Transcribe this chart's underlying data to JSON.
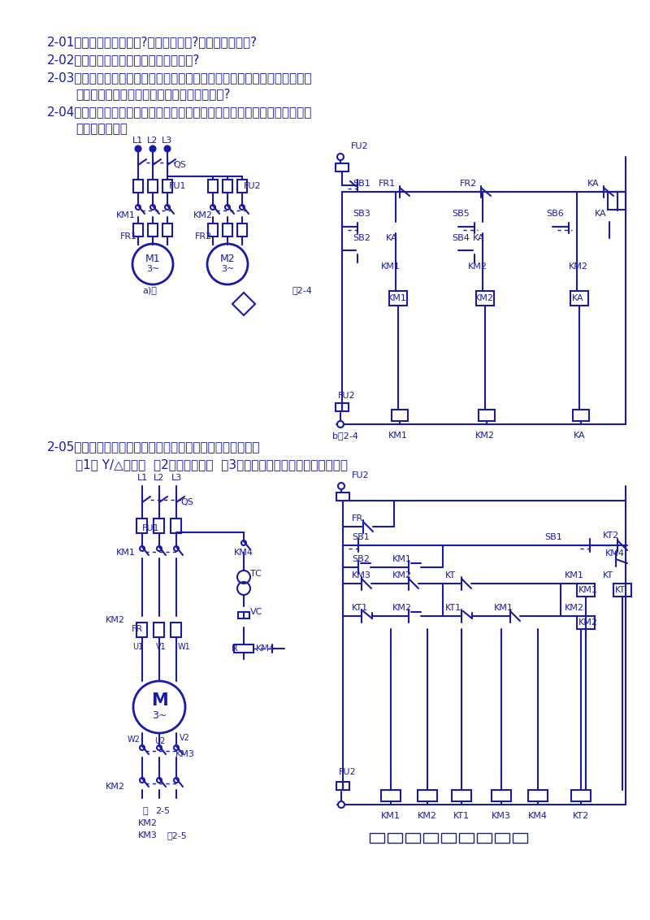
{
  "bg_color": "#ffffff",
  "diagram_color": "#1a1aaa",
  "text_color": "#1a1aaa",
  "fig_width": 8.0,
  "fig_height": 11.32,
  "q1": "2-01、自锁环节怎样组成?它起什么作用?并具有什么功能?",
  "q2": "2-02、什么是互锁环节，它起到什么作用?",
  "q3a": "2-03、在有自动控制的机床上，电动机由于过载而自动停车后，有人立即按启",
  "q3b": "动按鈕，但不能开车，试说明可能是什么原因?",
  "q4a": "2-04、有二台电动机，试拟定一个既能分别启动、停止，又可以同时启动、停",
  "q4b": "车的控制线路。",
  "q5a": "2-05、试设计某机床主轴电动机的主电路和控制电路。要求：",
  "q5b": "（1） Y/△启动；  （2）能耗制动；  （3）电路有短路、过载和失压保护。"
}
